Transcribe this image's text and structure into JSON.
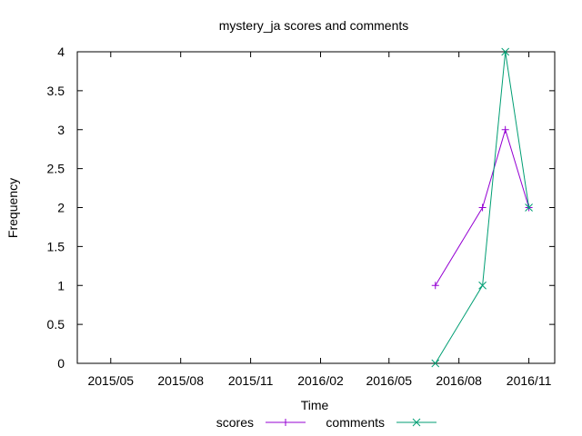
{
  "chart_data": {
    "type": "line",
    "title": "mystery_ja scores and comments",
    "xlabel": "Time",
    "ylabel": "Frequency",
    "x_tick_labels": [
      "2015/05",
      "2015/08",
      "2015/11",
      "2016/02",
      "2016/05",
      "2016/08",
      "2016/11"
    ],
    "x_tick_dates": [
      "2015-05-01",
      "2015-08-01",
      "2015-11-01",
      "2016-02-01",
      "2016-05-01",
      "2016-08-01",
      "2016-11-01"
    ],
    "xlim": [
      "2015-03-18",
      "2016-12-05"
    ],
    "y_tick_labels": [
      "0",
      "0.5",
      "1",
      "1.5",
      "2",
      "2.5",
      "3",
      "3.5",
      "4"
    ],
    "ylim": [
      0,
      4
    ],
    "grid": false,
    "legend_position": "bottom-center",
    "series": [
      {
        "name": "scores",
        "color": "#9400d3",
        "marker": "plus",
        "x": [
          "2016-07-01",
          "2016-09-01",
          "2016-10-01",
          "2016-11-01"
        ],
        "y": [
          1,
          2,
          3,
          2
        ]
      },
      {
        "name": "comments",
        "color": "#009e73",
        "marker": "cross",
        "x": [
          "2016-07-01",
          "2016-09-01",
          "2016-10-01",
          "2016-11-01"
        ],
        "y": [
          0,
          1,
          4,
          2
        ]
      }
    ]
  }
}
